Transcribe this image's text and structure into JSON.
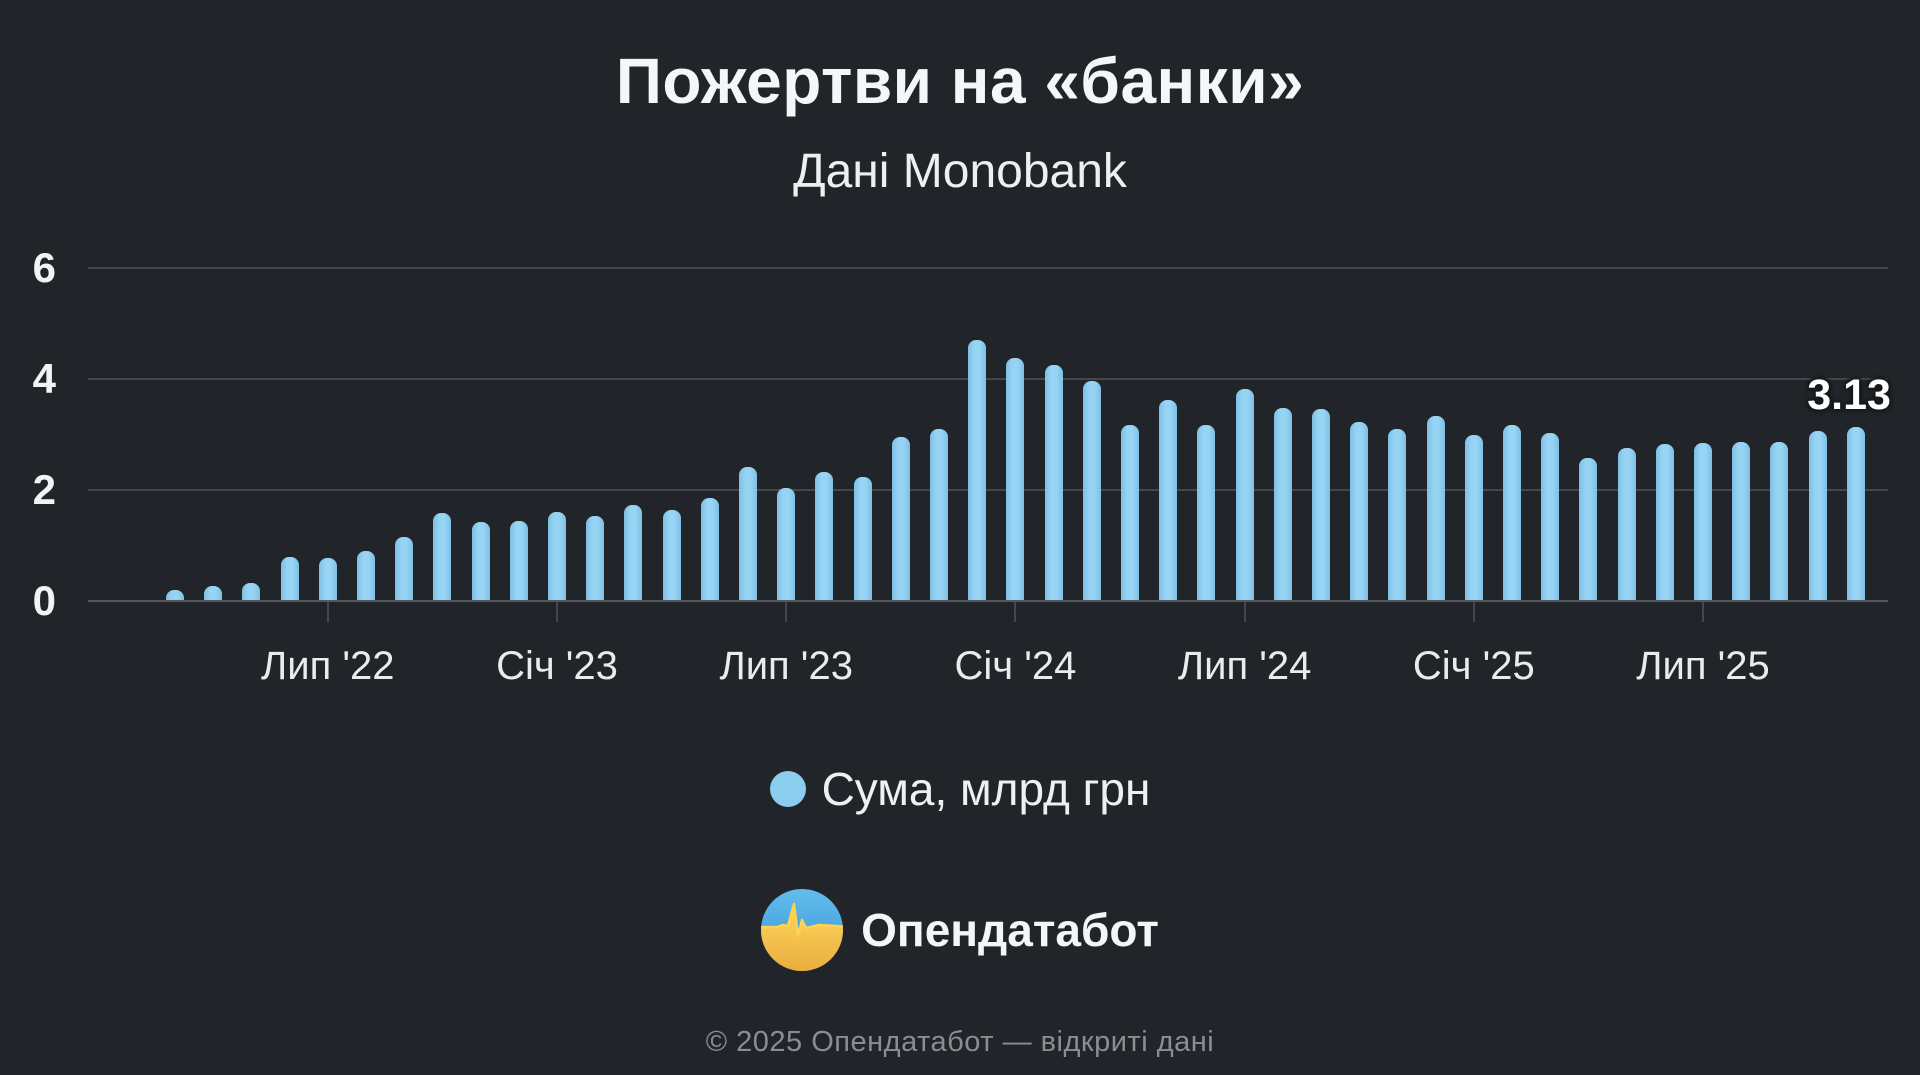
{
  "title": "Пожертви на «банки»",
  "subtitle": "Дані Monobank",
  "legend": {
    "label": "Сума, млрд грн",
    "dot_color": "#8BCDEF"
  },
  "brand": {
    "name": "Опендатабот"
  },
  "footer": "© 2025 Опендатабот — відкриті дані",
  "colors": {
    "background": "#212529",
    "bar": "#8BCDEF",
    "gridline": "#43474C",
    "axis_text": "#F1F3F5",
    "muted_text": "#8A8E93",
    "logo_blue_top": "#63BDEE",
    "logo_blue_bottom": "#3391CE",
    "logo_yellow_top": "#FFD75E",
    "logo_yellow_bottom": "#E9AC3D"
  },
  "chart_data": {
    "type": "bar",
    "title": "Пожертви на «банки»",
    "subtitle": "Дані Monobank",
    "ylabel": "Сума, млрд грн",
    "ylim": [
      0,
      6
    ],
    "yticks": [
      0,
      2,
      4,
      6
    ],
    "grid": true,
    "legend_position": "bottom",
    "x": [
      "2022-03",
      "2022-04",
      "2022-05",
      "2022-06",
      "2022-07",
      "2022-08",
      "2022-09",
      "2022-10",
      "2022-11",
      "2022-12",
      "2023-01",
      "2023-02",
      "2023-03",
      "2023-04",
      "2023-05",
      "2023-06",
      "2023-07",
      "2023-08",
      "2023-09",
      "2023-10",
      "2023-11",
      "2023-12",
      "2024-01",
      "2024-02",
      "2024-03",
      "2024-04",
      "2024-05",
      "2024-06",
      "2024-07",
      "2024-08",
      "2024-09",
      "2024-10",
      "2024-11",
      "2024-12",
      "2025-01",
      "2025-02",
      "2025-03",
      "2025-04",
      "2025-05",
      "2025-06",
      "2025-07",
      "2025-08",
      "2025-09",
      "2025-10",
      "2025-11"
    ],
    "values": [
      0.2,
      0.27,
      0.33,
      0.8,
      0.78,
      0.9,
      1.15,
      1.58,
      1.42,
      1.45,
      1.6,
      1.53,
      1.73,
      1.64,
      1.85,
      2.42,
      2.04,
      2.33,
      2.24,
      2.95,
      3.1,
      4.7,
      4.37,
      4.25,
      3.97,
      3.17,
      3.63,
      3.18,
      3.82,
      3.47,
      3.46,
      3.22,
      3.1,
      3.33,
      3.0,
      3.17,
      3.02,
      2.57,
      2.76,
      2.82,
      2.85,
      2.87,
      2.86,
      3.06,
      3.13
    ],
    "xtick_labels": [
      "Лип '22",
      "Січ '23",
      "Лип '23",
      "Січ '24",
      "Лип '24",
      "Січ '25",
      "Лип '25"
    ],
    "xtick_month_indices": [
      4,
      10,
      16,
      22,
      28,
      34,
      40
    ],
    "last_value_label": "3.13"
  }
}
